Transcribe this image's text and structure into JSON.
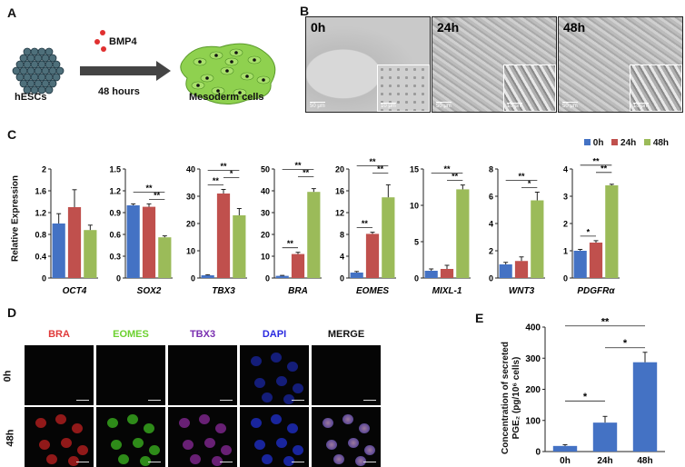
{
  "panel_labels": {
    "a": "A",
    "b": "B",
    "c": "C",
    "d": "D",
    "e": "E"
  },
  "panel_a": {
    "treatment": "BMP4",
    "duration": "48 hours",
    "start_label": "hESCs",
    "end_label": "Mesoderm cells",
    "colors": {
      "hesc": "#4e6f7a",
      "mesoderm": "#8fd14f",
      "bmp4_dot": "#e03030"
    }
  },
  "panel_b": {
    "timepoints": [
      "0h",
      "24h",
      "48h"
    ],
    "scale_main": "50 μm",
    "scale_inset": "10 μm"
  },
  "panel_c": {
    "ylabel": "Relative Expression",
    "legend": [
      "0h",
      "24h",
      "48h"
    ],
    "colors": {
      "0h": "#4472c4",
      "24h": "#c0504d",
      "48h": "#9bbb59"
    }
  },
  "chart_data": [
    {
      "type": "bar",
      "gene": "OCT4",
      "categories": [
        "0h",
        "24h",
        "48h"
      ],
      "values": [
        1.0,
        1.3,
        0.88
      ],
      "errors": [
        0.18,
        0.32,
        0.09
      ],
      "ylim": [
        0,
        2
      ],
      "yticks": [
        "0",
        "0.4",
        "0.8",
        "1.2",
        "1.6",
        "2"
      ],
      "sig": []
    },
    {
      "type": "bar",
      "gene": "SOX2",
      "categories": [
        "0h",
        "24h",
        "48h"
      ],
      "values": [
        1.0,
        0.98,
        0.56
      ],
      "errors": [
        0.02,
        0.04,
        0.02
      ],
      "ylim": [
        0,
        1.5
      ],
      "yticks": [
        "0",
        "0.3",
        "0.6",
        "0.9",
        "1.2",
        "1.5"
      ],
      "sig": [
        {
          "from": 0,
          "to": 2,
          "label": "**"
        },
        {
          "from": 1,
          "to": 2,
          "label": "**"
        }
      ]
    },
    {
      "type": "bar",
      "gene": "TBX3",
      "categories": [
        "0h",
        "24h",
        "48h"
      ],
      "values": [
        1.0,
        31,
        23
      ],
      "errors": [
        0.2,
        1.5,
        2.5
      ],
      "ylim": [
        0,
        40
      ],
      "yticks": [
        "0",
        "10",
        "20",
        "30",
        "40"
      ],
      "sig": [
        {
          "from": 0,
          "to": 2,
          "label": "**"
        },
        {
          "from": 0,
          "to": 1,
          "label": "**"
        },
        {
          "from": 1,
          "to": 2,
          "label": "*"
        }
      ]
    },
    {
      "type": "bar",
      "gene": "BRA",
      "categories": [
        "0h",
        "24h",
        "48h"
      ],
      "values": [
        1.0,
        11,
        39.5
      ],
      "errors": [
        0.2,
        0.8,
        1.5
      ],
      "ylim": [
        0,
        50
      ],
      "yticks": [
        "0",
        "10",
        "20",
        "30",
        "40",
        "50"
      ],
      "sig": [
        {
          "from": 0,
          "to": 2,
          "label": "**"
        },
        {
          "from": 0,
          "to": 1,
          "label": "**"
        },
        {
          "from": 1,
          "to": 2,
          "label": "**"
        }
      ]
    },
    {
      "type": "bar",
      "gene": "EOMES",
      "categories": [
        "0h",
        "24h",
        "48h"
      ],
      "values": [
        1.0,
        8.1,
        14.8
      ],
      "errors": [
        0.2,
        0.3,
        2.3
      ],
      "ylim": [
        0,
        20
      ],
      "yticks": [
        "0",
        "4",
        "8",
        "12",
        "16",
        "20"
      ],
      "sig": [
        {
          "from": 0,
          "to": 2,
          "label": "**"
        },
        {
          "from": 0,
          "to": 1,
          "label": "**"
        },
        {
          "from": 1,
          "to": 2,
          "label": "**"
        }
      ]
    },
    {
      "type": "bar",
      "gene": "MIXL-1",
      "categories": [
        "0h",
        "24h",
        "48h"
      ],
      "values": [
        1.0,
        1.25,
        12.2
      ],
      "errors": [
        0.25,
        0.5,
        0.6
      ],
      "ylim": [
        0,
        15
      ],
      "yticks": [
        "0",
        "5",
        "10",
        "15"
      ],
      "sig": [
        {
          "from": 0,
          "to": 2,
          "label": "**"
        },
        {
          "from": 1,
          "to": 2,
          "label": "**"
        }
      ]
    },
    {
      "type": "bar",
      "gene": "WNT3",
      "categories": [
        "0h",
        "24h",
        "48h"
      ],
      "values": [
        1.0,
        1.25,
        5.7
      ],
      "errors": [
        0.15,
        0.3,
        0.6
      ],
      "ylim": [
        0,
        8
      ],
      "yticks": [
        "0",
        "2",
        "4",
        "6",
        "8"
      ],
      "sig": [
        {
          "from": 0,
          "to": 2,
          "label": "**"
        },
        {
          "from": 1,
          "to": 2,
          "label": "*"
        }
      ]
    },
    {
      "type": "bar",
      "gene": "PDGFRα",
      "categories": [
        "0h",
        "24h",
        "48h"
      ],
      "values": [
        1.0,
        1.3,
        3.4
      ],
      "errors": [
        0.05,
        0.07,
        0.04
      ],
      "ylim": [
        0,
        4
      ],
      "yticks": [
        "0",
        "1",
        "2",
        "3",
        "4"
      ],
      "sig": [
        {
          "from": 0,
          "to": 1,
          "label": "*"
        },
        {
          "from": 0,
          "to": 2,
          "label": "**"
        },
        {
          "from": 1,
          "to": 2,
          "label": "**"
        }
      ]
    },
    {
      "type": "bar",
      "panel": "E",
      "categories": [
        "0h",
        "24h",
        "48h"
      ],
      "values": [
        18,
        93,
        287
      ],
      "errors": [
        4,
        20,
        32
      ],
      "ylim": [
        0,
        400
      ],
      "yticks": [
        "0",
        "100",
        "200",
        "300",
        "400"
      ],
      "ylabel": "Concentration of secreted PGE₂ (pg/10⁶ cells)",
      "sig": [
        {
          "from": 0,
          "to": 2,
          "label": "**"
        },
        {
          "from": 1,
          "to": 2,
          "label": "*"
        },
        {
          "from": 0,
          "to": 1,
          "label": "*"
        }
      ],
      "color": "#4472c4"
    }
  ],
  "panel_d": {
    "channels": [
      "BRA",
      "EOMES",
      "TBX3",
      "DAPI",
      "MERGE"
    ],
    "channel_colors": [
      "#e03a3a",
      "#6cd12f",
      "#7a2fb0",
      "#2a2ae0",
      "#111111"
    ],
    "rows": [
      "0h",
      "48h"
    ]
  }
}
